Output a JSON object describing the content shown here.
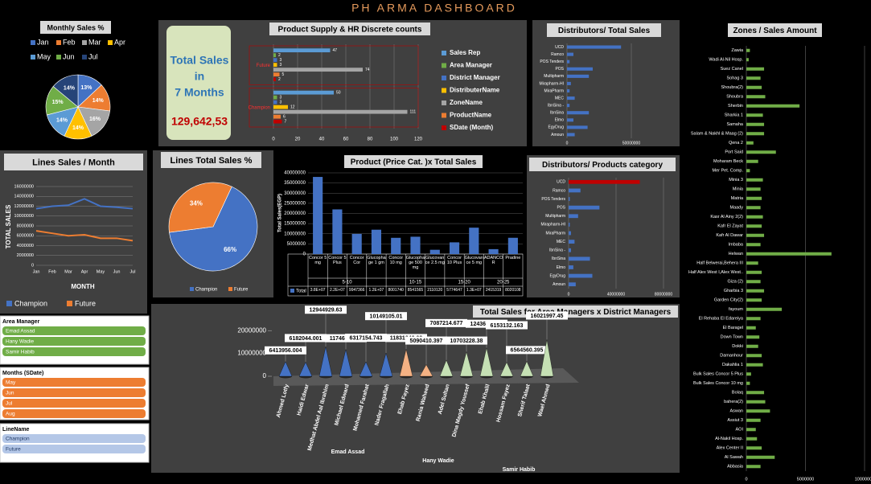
{
  "header": {
    "title": "PH ARMA DASHBOARD"
  },
  "total_box": {
    "lines": [
      "Total Sales",
      "in",
      "7 Months"
    ],
    "value": "129,642,53"
  },
  "slicers": [
    {
      "title": "Area Manager",
      "items": [
        "Emad Assad",
        "Hany Wadie",
        "Samir Habib"
      ]
    },
    {
      "title": "Months (SDate)",
      "items": [
        "May",
        "Jun",
        "Jul",
        "Aug"
      ]
    },
    {
      "title": "LineName",
      "items": [
        "Champion",
        "Future"
      ]
    }
  ],
  "chart_data": [
    {
      "type": "pie",
      "title": "Monthly Sales %",
      "categories": [
        "Jan",
        "Feb",
        "Mar",
        "Apr",
        "May",
        "Jun",
        "Jul"
      ],
      "values": [
        13,
        14,
        16,
        14,
        14,
        15,
        14
      ],
      "value_labels": [
        "13%",
        "14%",
        "16%",
        "14%",
        "14%",
        "15%",
        "14%"
      ],
      "colors": [
        "#4472c4",
        "#ed7d31",
        "#a5a5a5",
        "#ffc000",
        "#5b9bd5",
        "#70ad47",
        "#264478"
      ]
    },
    {
      "type": "grouped-hbar",
      "title": "Product Supply & HR Discrete counts",
      "categories": [
        "Future",
        "Champion"
      ],
      "series": [
        {
          "name": "Sales Rep",
          "color": "#5b9bd5",
          "values": [
            47,
            50
          ]
        },
        {
          "name": "Area Manager",
          "color": "#70ad47",
          "values": [
            2,
            3
          ]
        },
        {
          "name": "District Manager",
          "color": "#4472c4",
          "values": [
            3,
            3
          ]
        },
        {
          "name": "DistributerName",
          "color": "#ffc000",
          "values": [
            3,
            12
          ]
        },
        {
          "name": "ZoneName",
          "color": "#a5a5a5",
          "values": [
            74,
            111
          ]
        },
        {
          "name": "ProductName",
          "color": "#ed7d31",
          "values": [
            5,
            6
          ]
        },
        {
          "name": "SDate (Month)",
          "color": "#c00000",
          "values": [
            2,
            7
          ]
        }
      ],
      "xlim": [
        0,
        120
      ],
      "xticks": [
        0,
        20,
        40,
        60,
        80,
        100,
        120
      ]
    },
    {
      "type": "hbar",
      "title": "Distributors/ Total Sales",
      "categories": [
        "UCD",
        "Ramco",
        "POS Tenders",
        "POS",
        "Multipharm",
        "Mirapharm-HI",
        "MiraPharm",
        "MEC",
        "IbnSina -",
        "IbnSina",
        "Elmo",
        "EgyDrug",
        "Amoun"
      ],
      "values": [
        42000000,
        5000000,
        2000000,
        20000000,
        17000000,
        3000000,
        2000000,
        6000000,
        2000000,
        17000000,
        5000000,
        16000000,
        6000000
      ],
      "color": "#4472c4",
      "xlim": [
        0,
        60000000
      ],
      "xticks": [
        0,
        50000000
      ]
    },
    {
      "type": "hbar",
      "title": "Zones / Sales Amount",
      "categories": [
        "Zawia",
        "Wadi Al-Nil Hosp.",
        "Suez Canel",
        "Sohag 3",
        "Shoubra(2)",
        "Shoubra",
        "Sherbin",
        "Sharkia 1",
        "Samaha",
        "Salam & Nakhl & Maag (2)",
        "Qena 2",
        "Port Said",
        "Moharam Beck",
        "Mer Pet. Comp.",
        "Minia 3",
        "Minia",
        "Matria",
        "Maady",
        "Kasr Al Ainy 2(2)",
        "Kafr El Zayat",
        "Kafr Al Dawar",
        "Imbaba",
        "Helwan",
        "Half Belwerai,Behera III",
        "Half Alex West I,Alex West..",
        "Giza (2)",
        "Gharbia 3",
        "Garden City(2)",
        "fayoum",
        "El Rehaba El Edareiya",
        "El Baragel",
        "Down Town",
        "Dokki",
        "Damanhour",
        "Dakahlia 1",
        "Bulk Sales Concor 5 Plus",
        "Bulk Sales Concor 10 mg",
        "Bolaq",
        "bahera(2)",
        "Aswan",
        "Assiut 3",
        "AOI",
        "Al-Nakil Hosp.",
        "Alex Center II",
        "Al Sawah",
        "Abbasia"
      ],
      "values": [
        300000,
        200000,
        1500000,
        1200000,
        1300000,
        1600000,
        4500000,
        1400000,
        1500000,
        1500000,
        600000,
        2500000,
        1000000,
        300000,
        1400000,
        1200000,
        1300000,
        1200000,
        1400000,
        1300000,
        1500000,
        1200000,
        7200000,
        1000000,
        1300000,
        1200000,
        1500000,
        1300000,
        3000000,
        1200000,
        800000,
        1100000,
        1000000,
        1300000,
        1400000,
        400000,
        300000,
        1500000,
        1600000,
        2000000,
        1200000,
        800000,
        900000,
        1300000,
        2400000,
        1200000
      ],
      "color": "#70ad47",
      "xlim": [
        0,
        10000000
      ],
      "xticks": [
        0,
        5000000,
        10000000
      ]
    },
    {
      "type": "line",
      "title": "Lines Sales / Month",
      "x_label": "MONTH",
      "y_label": "TOTAL SALES",
      "categories": [
        "Jan",
        "Feb",
        "Mar",
        "Apr",
        "May",
        "Jun",
        "Jul"
      ],
      "series": [
        {
          "name": "Champion",
          "color": "#4472c4",
          "values": [
            11500000,
            12000000,
            12200000,
            13500000,
            12000000,
            11800000,
            11500000
          ]
        },
        {
          "name": "Future",
          "color": "#ed7d31",
          "values": [
            7000000,
            6500000,
            6000000,
            6200000,
            5500000,
            5500000,
            5000000
          ]
        }
      ],
      "ylim": [
        0,
        16000000
      ],
      "yticks": [
        0,
        2000000,
        4000000,
        6000000,
        8000000,
        10000000,
        12000000,
        14000000,
        16000000
      ]
    },
    {
      "type": "pie",
      "title": "Lines Total Sales %",
      "categories": [
        "Champion",
        "Future"
      ],
      "values": [
        66,
        34
      ],
      "value_labels": [
        "66%",
        "34%"
      ],
      "colors": [
        "#4472c4",
        "#ed7d31"
      ]
    },
    {
      "type": "bar",
      "title": "Product (Price Cat. )x  Total Sales",
      "y_label": "Total Sales(EGP)",
      "categories": [
        "Concor 5 mg",
        "Concor 5 Plus",
        "Concor Cor",
        "Glucophage 1 gm",
        "Concor 10 mg",
        "Glucophage 500 mg",
        "Glucovance 2.5 mg",
        "Concor 10 Plus",
        "Glucovance 5 mg",
        "ADANCOR",
        "Pradine"
      ],
      "category_groups": [
        "5-10",
        "10-15",
        "15-20",
        "20-25"
      ],
      "series": [
        {
          "name": "Total",
          "color": "#4472c4",
          "values": [
            38000000,
            22000000,
            9947366,
            12000000,
            8001740,
            8541565,
            2110120,
            5774647,
            13000000,
            2415319,
            8020108
          ],
          "value_labels": [
            "3.8E+07",
            "2.2E+07",
            "9947366",
            "1.2E+07",
            "8001740",
            "8541565",
            "2110120",
            "5774647",
            "1.3E+07",
            "2415319",
            "8020108"
          ]
        }
      ],
      "ylim": [
        0,
        40000000
      ],
      "yticks": [
        0,
        5000000,
        10000000,
        15000000,
        20000000,
        25000000,
        30000000,
        35000000,
        40000000
      ]
    },
    {
      "type": "hbar",
      "title": "Distributors/ Products category",
      "categories": [
        "UCD",
        "Ramco",
        "POS Tenders",
        "POS",
        "Multipharm",
        "Mirapharm-HI",
        "MiraPharm",
        "MEC",
        "IbnSina -",
        "IbnSina",
        "Elmo",
        "EgyDrug",
        "Amoun"
      ],
      "values": [
        60000000,
        10000000,
        1000000,
        26000000,
        8000000,
        1000000,
        2000000,
        5000000,
        2000000,
        18000000,
        4000000,
        20000000,
        6000000
      ],
      "colors": [
        "#c00000",
        "#4472c4",
        "#4472c4",
        "#4472c4",
        "#4472c4",
        "#4472c4",
        "#4472c4",
        "#4472c4",
        "#4472c4",
        "#4472c4",
        "#4472c4",
        "#4472c4",
        "#4472c4"
      ],
      "xlim": [
        0,
        80000000
      ],
      "xticks": [
        0,
        40000000,
        80000000
      ]
    },
    {
      "type": "cone",
      "title": "Total Sales for Area Managers x District Managers",
      "categories": [
        "Ahmed Lotfy",
        "Haidi Edwar",
        "Medhat Abdel Aal Ibrahim",
        "Michael Edward",
        "Mohamed Farahat",
        "Nader Fragallah",
        "Ehab Fayez",
        "Rania Waheed",
        "Adel Sultan",
        "Dina Magdy Youssef",
        "Ehab Khalil",
        "Hossam Fayez",
        "Sherif Talaat",
        "Wael Ahmed"
      ],
      "area_groups": [
        "Emad Assad",
        "Hany Wadie",
        "Samir Habib"
      ],
      "values": [
        6413956.004,
        6182044.001,
        12944929.63,
        11746075.61,
        6317154.743,
        10149105.01,
        11831946.93,
        5090410.397,
        7087214.677,
        10703228.38,
        12436776.17,
        6153132.163,
        6564560.395,
        16021997.45
      ],
      "colors": [
        "#4472c4",
        "#4472c4",
        "#4472c4",
        "#4472c4",
        "#4472c4",
        "#4472c4",
        "#f4b183",
        "#f4b183",
        "#c5e0b4",
        "#c5e0b4",
        "#c5e0b4",
        "#c5e0b4",
        "#c5e0b4",
        "#c5e0b4"
      ],
      "ylim": [
        0,
        25000000
      ],
      "yticks": [
        0,
        10000000,
        20000000
      ]
    }
  ]
}
